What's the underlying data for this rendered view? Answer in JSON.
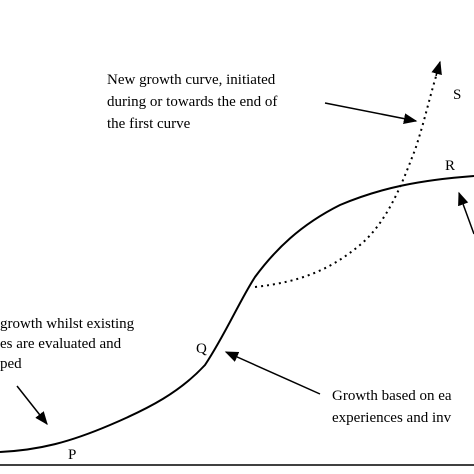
{
  "diagram": {
    "colors": {
      "line": "#000000",
      "background": "#ffffff"
    },
    "points": {
      "p": "P",
      "q": "Q",
      "r": "R",
      "s": "S"
    },
    "annotations": {
      "new_curve": [
        "New growth curve, initiated",
        "during or towards the end of",
        "the first curve"
      ],
      "early_growth": [
        "growth whilst existing",
        "es are evaluated and",
        "ped"
      ],
      "growth_based": [
        "Growth based on ea",
        "experiences and inv"
      ]
    }
  }
}
